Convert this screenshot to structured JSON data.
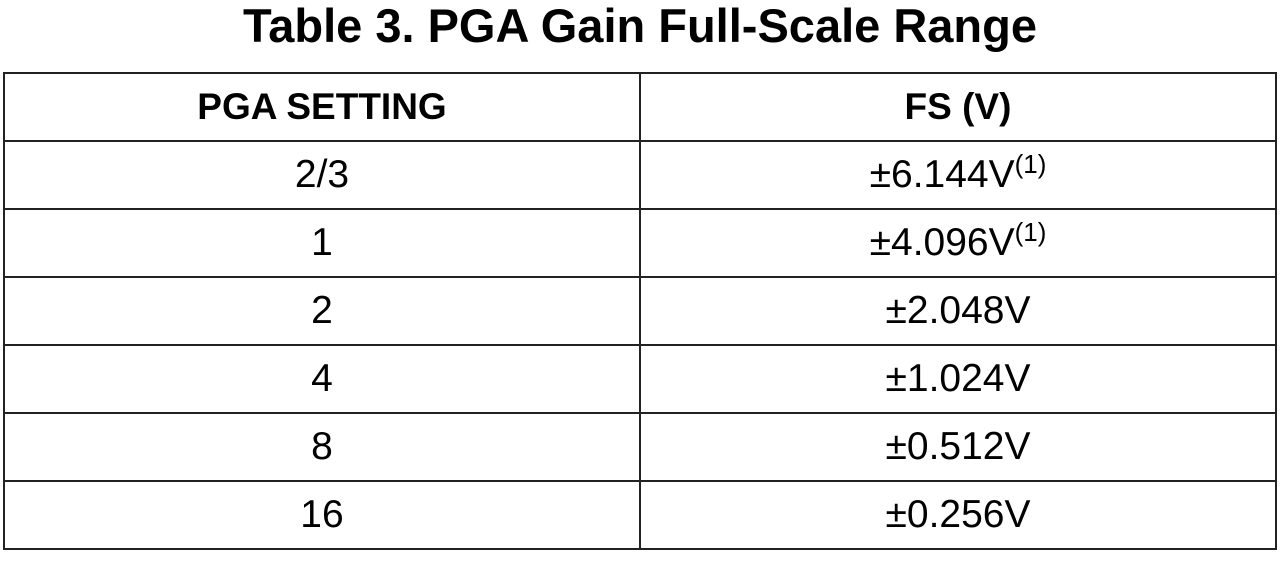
{
  "title": "Table 3. PGA Gain Full-Scale Range",
  "table": {
    "headers": [
      "PGA SETTING",
      "FS (V)"
    ],
    "rows": [
      {
        "setting": "2/3",
        "fs": "±6.144V",
        "note": "(1)"
      },
      {
        "setting": "1",
        "fs": "±4.096V",
        "note": "(1)"
      },
      {
        "setting": "2",
        "fs": "±2.048V"
      },
      {
        "setting": "4",
        "fs": "±1.024V"
      },
      {
        "setting": "8",
        "fs": "±0.512V"
      },
      {
        "setting": "16",
        "fs": "±0.256V"
      }
    ]
  }
}
